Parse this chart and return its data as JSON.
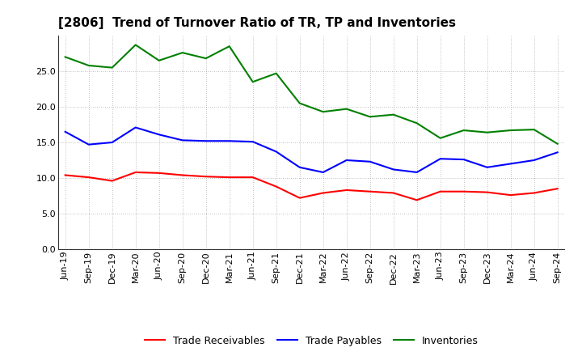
{
  "title": "[2806]  Trend of Turnover Ratio of TR, TP and Inventories",
  "x_labels": [
    "Jun-19",
    "Sep-19",
    "Dec-19",
    "Mar-20",
    "Jun-20",
    "Sep-20",
    "Dec-20",
    "Mar-21",
    "Jun-21",
    "Sep-21",
    "Dec-21",
    "Mar-22",
    "Jun-22",
    "Sep-22",
    "Dec-22",
    "Mar-23",
    "Jun-23",
    "Sep-23",
    "Dec-23",
    "Mar-24",
    "Jun-24",
    "Sep-24"
  ],
  "trade_receivables": [
    10.4,
    10.1,
    9.6,
    10.8,
    10.7,
    10.4,
    10.2,
    10.1,
    10.1,
    8.8,
    7.2,
    7.9,
    8.3,
    8.1,
    7.9,
    6.9,
    8.1,
    8.1,
    8.0,
    7.6,
    7.9,
    8.5
  ],
  "trade_payables": [
    16.5,
    14.7,
    15.0,
    17.1,
    16.1,
    15.3,
    15.2,
    15.2,
    15.1,
    13.7,
    11.5,
    10.8,
    12.5,
    12.3,
    11.2,
    10.8,
    12.7,
    12.6,
    11.5,
    12.0,
    12.5,
    13.6
  ],
  "inventories": [
    27.0,
    25.8,
    25.5,
    28.7,
    26.5,
    27.6,
    26.8,
    28.5,
    23.5,
    24.7,
    20.5,
    19.3,
    19.7,
    18.6,
    18.9,
    17.7,
    15.6,
    16.7,
    16.4,
    16.7,
    16.8,
    14.8
  ],
  "ylim": [
    0,
    30
  ],
  "yticks": [
    0.0,
    5.0,
    10.0,
    15.0,
    20.0,
    25.0
  ],
  "tr_color": "#ff0000",
  "tp_color": "#0000ff",
  "inv_color": "#008000",
  "background_color": "#ffffff",
  "grid_color": "#aaaaaa",
  "legend_labels": [
    "Trade Receivables",
    "Trade Payables",
    "Inventories"
  ],
  "title_fontsize": 11,
  "tick_fontsize": 8,
  "legend_fontsize": 9,
  "linewidth": 1.5
}
